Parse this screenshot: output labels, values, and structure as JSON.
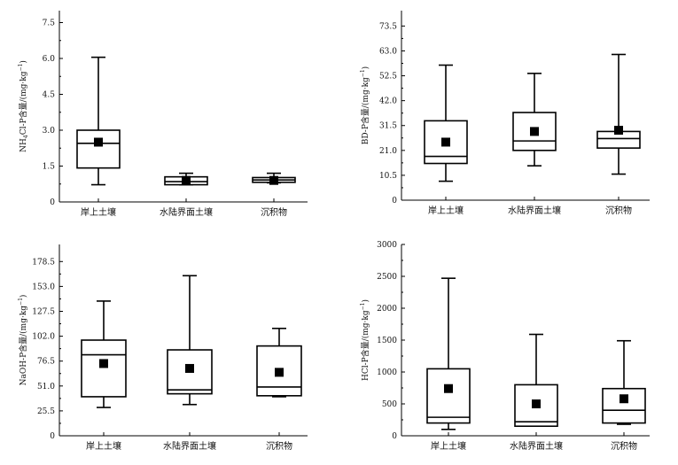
{
  "chart_data": [
    {
      "type": "box",
      "ylabel_main": "NH",
      "ylabel_sub": "4",
      "ylabel_rest": "Cl-P含量/(mg·kg",
      "ylabel_sup": "−1",
      "ylabel_close": ")",
      "yticks": [
        0,
        1.5,
        3.0,
        4.5,
        6.0,
        7.5
      ],
      "ytick_labels": [
        "0",
        "1.5",
        "3.0",
        "4.5",
        "6.0",
        "7.5"
      ],
      "ylim": [
        0,
        8.0
      ],
      "categories": [
        "岸上土壤",
        "水陆界面土壤",
        "沉积物"
      ],
      "boxes": [
        {
          "whisker_low": 0.72,
          "q1": 1.42,
          "median": 2.45,
          "q3": 3.0,
          "whisker_high": 6.05,
          "mean": 2.5
        },
        {
          "whisker_low": 0.72,
          "q1": 0.72,
          "median": 0.85,
          "q3": 1.05,
          "whisker_high": 1.2,
          "mean": 0.9
        },
        {
          "whisker_low": 0.8,
          "q1": 0.82,
          "median": 0.92,
          "q3": 1.02,
          "whisker_high": 1.2,
          "mean": 0.9
        }
      ]
    },
    {
      "type": "box",
      "ylabel_main": "BD-P含量/(mg·kg",
      "ylabel_sup": "−1",
      "ylabel_close": ")",
      "yticks": [
        0,
        10.5,
        21.0,
        31.5,
        42.0,
        52.5,
        63.0,
        73.5
      ],
      "ytick_labels": [
        "0",
        "10.5",
        "21.0",
        "31.5",
        "42.0",
        "52.5",
        "63.0",
        "73.5"
      ],
      "ylim": [
        0,
        80
      ],
      "categories": [
        "岸上土壤",
        "水陆界面土壤",
        "沉积物"
      ],
      "boxes": [
        {
          "whisker_low": 8.0,
          "q1": 15.5,
          "median": 18.5,
          "q3": 33.5,
          "whisker_high": 57.0,
          "mean": 24.5
        },
        {
          "whisker_low": 14.5,
          "q1": 21.0,
          "median": 25.0,
          "q3": 37.0,
          "whisker_high": 53.5,
          "mean": 29.0
        },
        {
          "whisker_low": 11.0,
          "q1": 22.0,
          "median": 26.0,
          "q3": 29.0,
          "whisker_high": 61.5,
          "mean": 29.5
        }
      ]
    },
    {
      "type": "box",
      "ylabel_main": "NaOH-P含量/(mg·kg",
      "ylabel_sup": "−1",
      "ylabel_close": ")",
      "yticks": [
        0,
        25.5,
        51.0,
        76.5,
        102.0,
        127.5,
        153.0,
        178.5
      ],
      "ytick_labels": [
        "0",
        "25.5",
        "51.0",
        "76.5",
        "102.0",
        "127.5",
        "153.0",
        "178.5"
      ],
      "ylim": [
        0,
        196
      ],
      "categories": [
        "岸上土壤",
        "水陆界面土壤",
        "沉积物"
      ],
      "boxes": [
        {
          "whisker_low": 29.0,
          "q1": 40.0,
          "median": 83.0,
          "q3": 98.0,
          "whisker_high": 138.0,
          "mean": 74.0
        },
        {
          "whisker_low": 32.0,
          "q1": 43.0,
          "median": 47.0,
          "q3": 88.0,
          "whisker_high": 164.0,
          "mean": 69.0
        },
        {
          "whisker_low": 40.0,
          "q1": 41.0,
          "median": 50.0,
          "q3": 92.0,
          "whisker_high": 110.0,
          "mean": 65.0
        }
      ]
    },
    {
      "type": "box",
      "ylabel_main": "HCl-P含量/(mg·kg",
      "ylabel_sup": "−1",
      "ylabel_close": ")",
      "yticks": [
        0,
        500,
        1000,
        1500,
        2000,
        2500,
        3000
      ],
      "ytick_labels": [
        "0",
        "500",
        "1000",
        "1500",
        "2000",
        "2500",
        "3000"
      ],
      "ylim": [
        0,
        3000
      ],
      "categories": [
        "岸上土壤",
        "水陆界面土壤",
        "沉积物"
      ],
      "boxes": [
        {
          "whisker_low": 100,
          "q1": 200,
          "median": 290,
          "q3": 1050,
          "whisker_high": 2470,
          "mean": 740
        },
        {
          "whisker_low": 150,
          "q1": 150,
          "median": 220,
          "q3": 800,
          "whisker_high": 1590,
          "mean": 500
        },
        {
          "whisker_low": 180,
          "q1": 200,
          "median": 400,
          "q3": 740,
          "whisker_high": 1490,
          "mean": 580
        }
      ]
    }
  ]
}
